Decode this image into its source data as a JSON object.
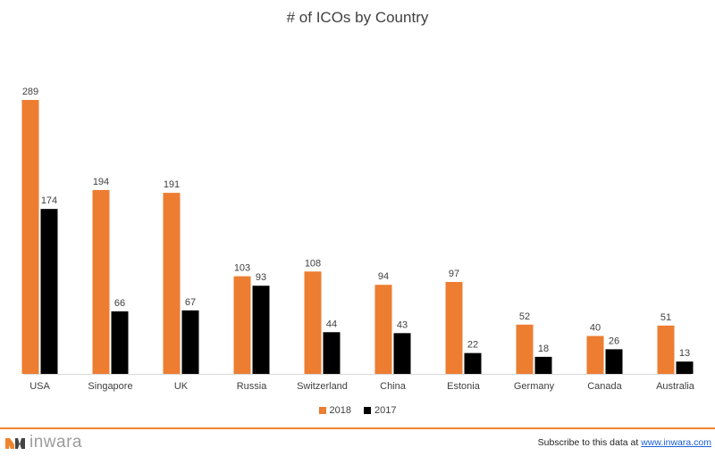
{
  "chart_data": {
    "type": "bar",
    "title": "# of ICOs by Country",
    "categories": [
      "USA",
      "Singapore",
      "UK",
      "Russia",
      "Switzerland",
      "China",
      "Estonia",
      "Germany",
      "Canada",
      "Australia"
    ],
    "series": [
      {
        "name": "2018",
        "color": "#ed7d31",
        "values": [
          289,
          194,
          191,
          103,
          108,
          94,
          97,
          52,
          40,
          51
        ]
      },
      {
        "name": "2017",
        "color": "#000000",
        "values": [
          174,
          66,
          67,
          93,
          44,
          43,
          22,
          18,
          26,
          13
        ]
      }
    ],
    "ylim": [
      0,
      289
    ],
    "grid": false,
    "data_labels": true,
    "legend_position": "bottom"
  },
  "footer": {
    "brand_name": "inwara",
    "subscribe_text": "Subscribe to this data at ",
    "subscribe_link": "www.inwara.com",
    "accent_color": "#f0852d"
  }
}
